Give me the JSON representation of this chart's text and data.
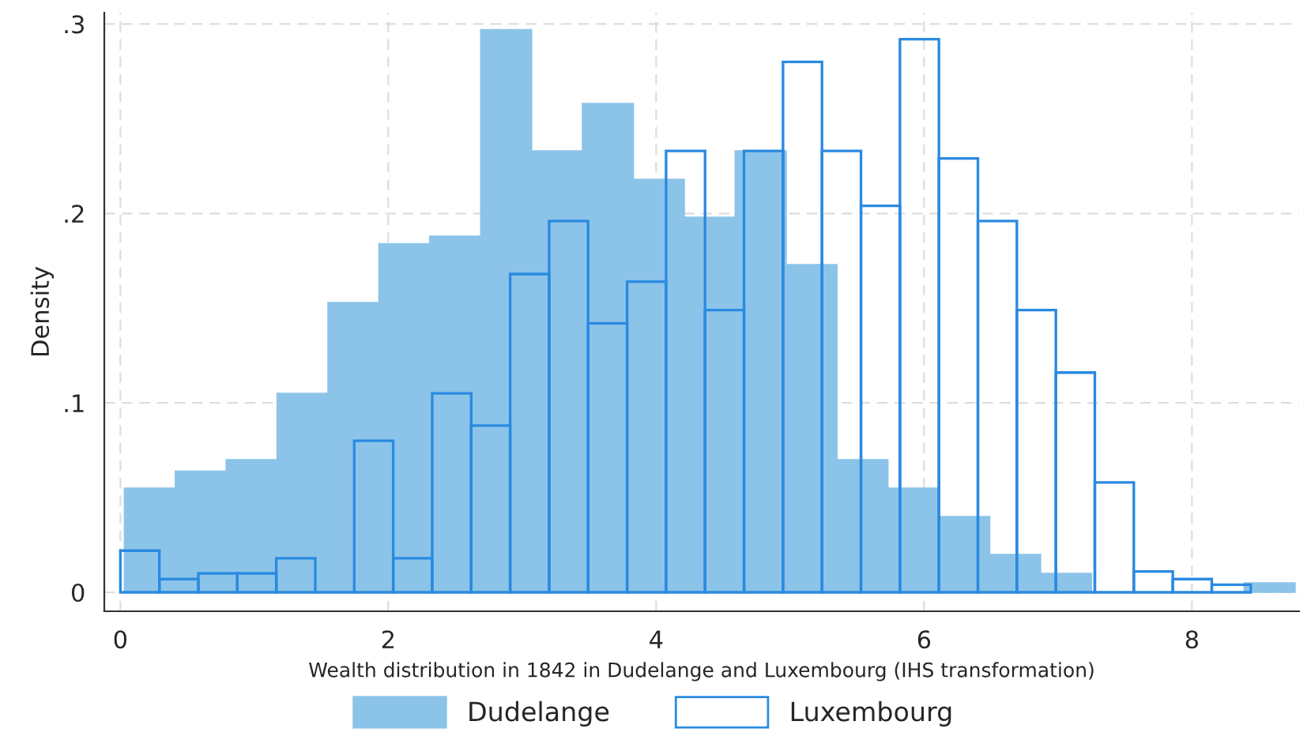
{
  "chart_data": [
    {
      "type": "histogram",
      "xlabel": "Wealth distribution in 1842 in Dudelange and Luxembourg (IHS transformation)",
      "ylabel": "Density",
      "xlim": [
        -0.12,
        8.8
      ],
      "ylim": [
        -0.01,
        0.306
      ],
      "xticks": [
        0,
        2,
        4,
        6,
        8
      ],
      "yticks": [
        {
          "value": 0,
          "label": "0"
        },
        {
          "value": 0.1,
          "label": ".1"
        },
        {
          "value": 0.2,
          "label": ".2"
        },
        {
          "value": 0.3,
          "label": ".3"
        }
      ],
      "grid": true,
      "legend": "bottom",
      "bins": [
        0.03,
        0.41,
        0.79,
        1.17,
        1.55,
        1.93,
        2.31,
        2.69,
        3.07,
        3.45,
        3.83,
        4.21,
        4.59,
        4.97,
        5.35,
        5.73,
        6.11,
        6.49,
        6.87,
        7.25,
        7.63,
        8.01,
        8.39,
        8.77
      ],
      "series": [
        {
          "name": "Dudelange",
          "color": "#8cc4e9",
          "values": [
            0.055,
            0.064,
            0.07,
            0.105,
            0.153,
            0.184,
            0.188,
            0.297,
            0.233,
            0.258,
            0.218,
            0.198,
            0.233,
            0.173,
            0.07,
            0.055,
            0.04,
            0.02,
            0.01,
            0,
            0,
            0,
            0.005
          ]
        }
      ]
    },
    {
      "type": "histogram",
      "xlim": [
        -0.12,
        8.8
      ],
      "ylim": [
        -0.01,
        0.306
      ],
      "tick_labels": false,
      "legend": "bottom",
      "xticks": [
        0,
        2,
        4,
        6,
        8
      ],
      "yticks": [
        {
          "value": 0,
          "label": null
        },
        {
          "value": 0.1,
          "label": null
        },
        {
          "value": 0.2,
          "label": null
        },
        {
          "value": 0.3,
          "label": null
        }
      ],
      "bins": [
        0,
        0.291,
        0.582,
        0.873,
        1.164,
        1.455,
        1.746,
        2.037,
        2.328,
        2.619,
        2.91,
        3.201,
        3.492,
        3.783,
        4.074,
        4.365,
        4.656,
        4.947,
        5.238,
        5.529,
        5.82,
        6.111,
        6.402,
        6.693,
        6.984,
        7.275,
        7.566,
        7.857,
        8.148,
        8.439
      ],
      "series": [
        {
          "name": "Luxembourg",
          "color": "#2a8ae0",
          "values": [
            0.022,
            0.007,
            0.01,
            0.01,
            0.018,
            0,
            0.08,
            0.018,
            0.105,
            0.088,
            0.168,
            0.196,
            0.142,
            0.164,
            0.233,
            0.149,
            0.233,
            0.28,
            0.233,
            0.204,
            0.292,
            0.229,
            0.196,
            0.149,
            0.116,
            0.058,
            0.011,
            0.007,
            0.004
          ]
        }
      ]
    }
  ]
}
